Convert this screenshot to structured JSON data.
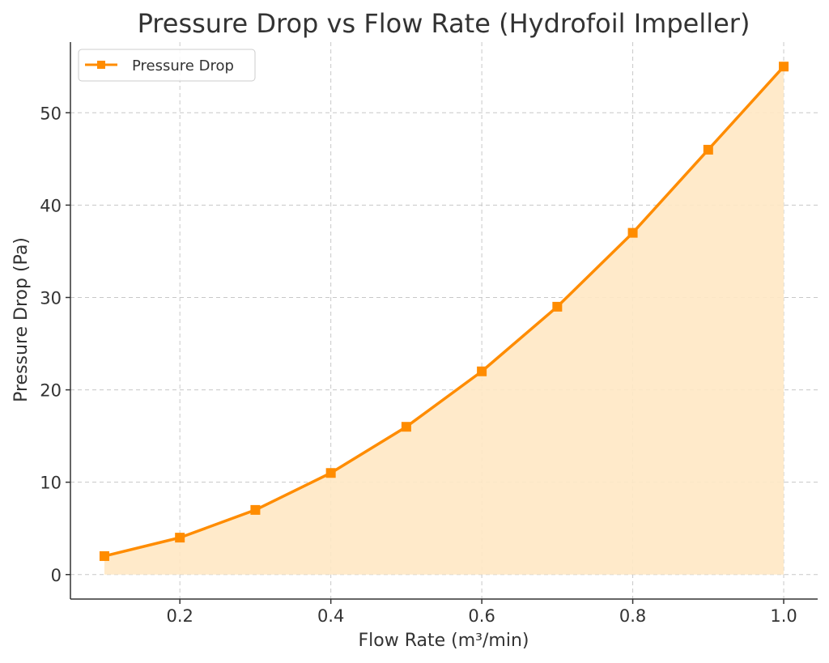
{
  "chart_data": {
    "type": "line",
    "title": "Pressure Drop vs Flow Rate (Hydrofoil Impeller)",
    "xlabel": "Flow Rate (m³/min)",
    "ylabel": "Pressure Drop (Pa)",
    "x": [
      0.1,
      0.2,
      0.3,
      0.4,
      0.5,
      0.6,
      0.7,
      0.8,
      0.9,
      1.0
    ],
    "series": [
      {
        "name": "Pressure Drop",
        "values": [
          2,
          4,
          7,
          11,
          16,
          22,
          29,
          37,
          46,
          55
        ],
        "color": "#ff8c00",
        "marker": "square",
        "fill": "#ffe8c4"
      }
    ],
    "xlim": [
      0.055,
      1.045
    ],
    "ylim": [
      -2.65,
      57.65
    ],
    "xticks": [
      0.2,
      0.4,
      0.6,
      0.8,
      1.0
    ],
    "xtick_labels": [
      "0.2",
      "0.4",
      "0.6",
      "0.8",
      "1.0"
    ],
    "yticks": [
      0,
      10,
      20,
      30,
      40,
      50
    ],
    "ytick_labels": [
      "0",
      "10",
      "20",
      "30",
      "40",
      "50"
    ],
    "grid": true,
    "legend_position": "top-left"
  }
}
